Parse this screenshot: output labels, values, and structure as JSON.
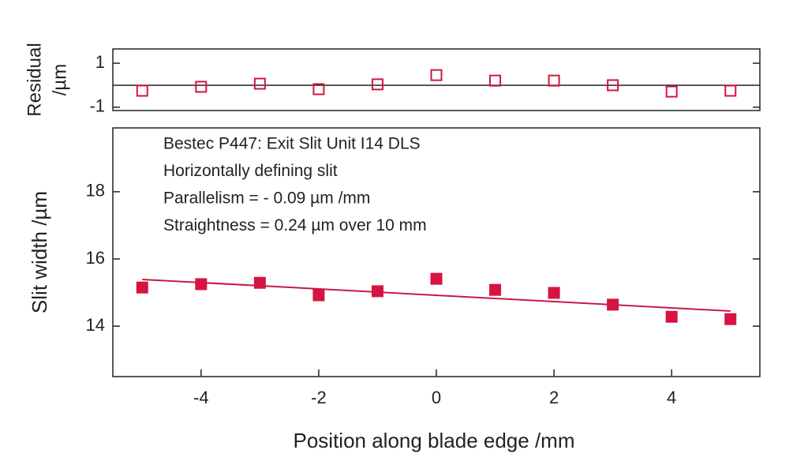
{
  "chart_data": [
    {
      "type": "scatter",
      "ylabel": [
        "Residual",
        "/µm"
      ],
      "x": [
        -5,
        -4,
        -3,
        -2,
        -1,
        0,
        1,
        2,
        3,
        4,
        5
      ],
      "series": [
        {
          "color": "#d6143f",
          "marker": "open-square",
          "values": [
            -0.25,
            -0.07,
            0.07,
            -0.18,
            0.04,
            0.46,
            0.21,
            0.21,
            0,
            -0.29,
            -0.25
          ]
        }
      ],
      "xlim": [
        -5.5,
        5.5
      ],
      "ylim": [
        -1.15,
        1.65
      ],
      "yticks": [
        1,
        -1
      ],
      "zero_line": true
    },
    {
      "type": "scatter",
      "xlabel": "Position along blade edge /mm",
      "ylabel": "Slit width /µm",
      "annotations": [
        "Bestec P447: Exit Slit Unit I14 DLS",
        "Horizontally defining slit",
        "Parallelism = - 0.09 µm /mm",
        "Straightness = 0.24 µm over 10 mm"
      ],
      "x": [
        -5,
        -4,
        -3,
        -2,
        -1,
        0,
        1,
        2,
        3,
        4,
        5
      ],
      "series": [
        {
          "color": "#d6143f",
          "marker": "square",
          "values": [
            15.15,
            15.25,
            15.29,
            14.92,
            15.04,
            15.41,
            15.08,
            14.99,
            14.64,
            14.28,
            14.21
          ]
        },
        {
          "color": "#c8184a",
          "marker": "line",
          "x": [
            -5,
            5
          ],
          "values": [
            15.39,
            14.45
          ]
        }
      ],
      "xlim": [
        -5.5,
        5.5
      ],
      "ylim": [
        12.5,
        19.9
      ],
      "xticks": [
        -4,
        -2,
        0,
        2,
        4
      ],
      "yticks": [
        18,
        16,
        14
      ]
    }
  ]
}
